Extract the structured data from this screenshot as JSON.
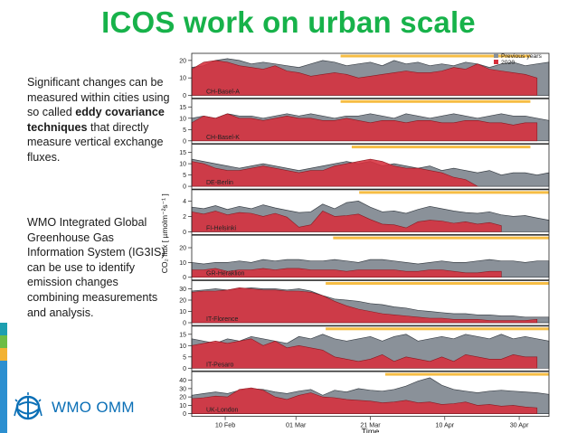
{
  "title": "ICOS work on urban scale",
  "text": {
    "para1_pre": "Significant changes can be measured within cities using so called ",
    "para1_bold": "eddy covariance techniques",
    "para1_post": " that directly measure vertical exchange fluxes.",
    "para2": "WMO Integrated Global Greenhouse Gas Information System (IG3IS) can be use to identify emission changes combining measurements and analysis."
  },
  "logo": {
    "text": "WMO OMM",
    "icon": "wmo-emblem-icon"
  },
  "colors": {
    "title": "#17b24a",
    "current": "#d62f3c",
    "previous": "#8a9199",
    "lockdown": "#f5b630",
    "logo": "#0a6fb6"
  },
  "chart_data": {
    "type": "area",
    "xlabel": "Time",
    "ylabel": "CO₂ flux [ µmolm⁻²s⁻¹ ]",
    "xticks": [
      {
        "label": "10 Feb",
        "day": 41
      },
      {
        "label": "01 Mar",
        "day": 60
      },
      {
        "label": "21 Mar",
        "day": 80
      },
      {
        "label": "10 Apr",
        "day": 100
      },
      {
        "label": "30 Apr",
        "day": 120
      }
    ],
    "xlim": [
      32,
      128
    ],
    "legend": {
      "position": "top-right",
      "entries": [
        "Previous years",
        "2020"
      ]
    },
    "panels": [
      {
        "name": "CH-Basel-A",
        "ylim": [
          0,
          22
        ],
        "yticks": [
          0,
          10,
          20
        ],
        "prev_y": [
          16,
          17,
          20,
          21,
          20,
          18,
          19,
          18,
          17,
          16,
          18,
          20,
          19,
          17,
          18,
          19,
          17,
          20,
          18,
          19,
          17,
          18,
          17,
          19,
          18,
          16,
          18,
          19,
          17,
          18,
          19
        ],
        "cur_y": [
          15,
          19,
          20,
          19,
          17,
          16,
          15,
          17,
          14,
          13,
          11,
          12,
          13,
          12,
          10,
          11,
          12,
          13,
          14,
          13,
          13,
          14,
          16,
          15,
          18,
          15,
          14,
          13,
          12,
          10,
          7
        ],
        "cur_end_day": 127,
        "lockdown": [
          72,
          123
        ]
      },
      {
        "name": "CH-Basel-K",
        "ylim": [
          0,
          17
        ],
        "yticks": [
          0,
          5,
          10,
          15
        ],
        "prev_y": [
          10,
          11,
          10,
          12,
          11,
          11,
          10,
          11,
          12,
          11,
          12,
          11,
          10,
          11,
          11,
          12,
          11,
          10,
          12,
          11,
          10,
          11,
          12,
          11,
          10,
          11,
          12,
          11,
          11,
          10,
          9
        ],
        "cur_y": [
          8,
          11,
          10,
          12,
          10,
          10,
          9,
          10,
          11,
          10,
          10,
          9,
          9,
          10,
          9,
          8,
          9,
          9,
          8,
          9,
          9,
          8,
          8,
          9,
          9,
          8,
          8,
          7,
          8,
          8,
          9
        ],
        "cur_end_day": 127,
        "lockdown": [
          72,
          123
        ]
      },
      {
        "name": "DE-Berlin",
        "ylim": [
          0,
          17
        ],
        "yticks": [
          0,
          5,
          10,
          15
        ],
        "prev_y": [
          12,
          11,
          10,
          9,
          8,
          9,
          10,
          9,
          8,
          7,
          8,
          9,
          10,
          11,
          10,
          11,
          9,
          10,
          9,
          8,
          9,
          7,
          8,
          7,
          6,
          7,
          5,
          6,
          6,
          5,
          6
        ],
        "cur_y": [
          11,
          10,
          8,
          7,
          7,
          8,
          9,
          8,
          7,
          6,
          7,
          7,
          9,
          10,
          11,
          12,
          11,
          9,
          8,
          8,
          7,
          6,
          4,
          3,
          0,
          0,
          0,
          0,
          0,
          0,
          0
        ],
        "cur_end_day": 111,
        "lockdown": [
          75,
          123
        ]
      },
      {
        "name": "FI-Helsinki",
        "ylim": [
          0,
          5
        ],
        "yticks": [
          0,
          2,
          4
        ],
        "prev_y": [
          3.2,
          3.0,
          3.4,
          2.9,
          3.3,
          3.0,
          3.5,
          3.1,
          2.8,
          2.5,
          2.6,
          3.6,
          3.0,
          3.8,
          4.0,
          3.2,
          2.6,
          2.7,
          2.4,
          2.9,
          3.3,
          3.0,
          2.7,
          2.5,
          2.4,
          2.6,
          2.2,
          2.0,
          2.1,
          1.8,
          1.5
        ],
        "cur_y": [
          2.6,
          2.3,
          2.7,
          2.2,
          2.5,
          2.4,
          2.0,
          2.4,
          1.9,
          0.6,
          0.9,
          2.7,
          2.0,
          2.1,
          2.3,
          1.6,
          1.0,
          0.9,
          0.5,
          1.3,
          1.5,
          1.4,
          1.1,
          1.3,
          1.0,
          1.2,
          0.8,
          0.0,
          0.0,
          0.0,
          0.0
        ],
        "cur_end_day": 118,
        "lockdown": [
          77,
          128
        ]
      },
      {
        "name": "GR-Heraklion",
        "ylim": [
          0,
          26
        ],
        "yticks": [
          0,
          10,
          20
        ],
        "prev_y": [
          10,
          9,
          10,
          10,
          11,
          10,
          12,
          11,
          12,
          12,
          11,
          11,
          12,
          11,
          10,
          12,
          12,
          11,
          10,
          9,
          10,
          11,
          10,
          10,
          11,
          12,
          11,
          11,
          10,
          11,
          11
        ],
        "cur_y": [
          5,
          5,
          6,
          4,
          5,
          5,
          6,
          5,
          6,
          6,
          5,
          5,
          5,
          4,
          5,
          5,
          5,
          5,
          4,
          4,
          5,
          5,
          4,
          3,
          3,
          4,
          4,
          0,
          0,
          0,
          0
        ],
        "cur_end_day": 118,
        "lockdown": [
          70,
          128
        ]
      },
      {
        "name": "IT-Florence",
        "ylim": [
          0,
          34
        ],
        "yticks": [
          0,
          10,
          20,
          30
        ],
        "prev_y": [
          28,
          29,
          30,
          29,
          30,
          31,
          30,
          30,
          29,
          30,
          28,
          24,
          21,
          20,
          19,
          17,
          16,
          14,
          13,
          11,
          10,
          9,
          8,
          8,
          7,
          7,
          6,
          6,
          5,
          5,
          5
        ],
        "cur_y": [
          27,
          28,
          28,
          29,
          31,
          30,
          29,
          29,
          28,
          28,
          27,
          24,
          19,
          15,
          12,
          10,
          8,
          7,
          6,
          5,
          4,
          4,
          3,
          3,
          3,
          2,
          2,
          2,
          2,
          3,
          5
        ],
        "cur_end_day": 127,
        "lockdown": [
          68,
          128
        ]
      },
      {
        "name": "IT-Pesaro",
        "ylim": [
          0,
          17
        ],
        "yticks": [
          0,
          5,
          10,
          15
        ],
        "prev_y": [
          13,
          12,
          11,
          13,
          12,
          14,
          13,
          12,
          11,
          14,
          13,
          15,
          13,
          12,
          13,
          14,
          12,
          14,
          15,
          12,
          13,
          14,
          13,
          15,
          14,
          13,
          15,
          13,
          14,
          13,
          12
        ],
        "cur_y": [
          10,
          11,
          12,
          11,
          12,
          13,
          10,
          12,
          9,
          10,
          9,
          8,
          5,
          4,
          3,
          4,
          6,
          3,
          5,
          4,
          3,
          5,
          3,
          6,
          5,
          4,
          4,
          6,
          5,
          5,
          13
        ],
        "cur_end_day": 127,
        "lockdown": [
          68,
          128
        ]
      },
      {
        "name": "UK-London",
        "ylim": [
          0,
          46
        ],
        "yticks": [
          0,
          10,
          20,
          30,
          40
        ],
        "prev_y": [
          22,
          24,
          26,
          24,
          28,
          30,
          29,
          26,
          24,
          27,
          29,
          22,
          28,
          26,
          30,
          28,
          27,
          29,
          33,
          39,
          43,
          34,
          29,
          27,
          25,
          27,
          28,
          27,
          26,
          25,
          23
        ],
        "cur_y": [
          18,
          19,
          21,
          20,
          29,
          31,
          28,
          20,
          17,
          22,
          25,
          20,
          19,
          17,
          16,
          15,
          13,
          14,
          16,
          13,
          14,
          11,
          12,
          14,
          10,
          11,
          9,
          10,
          8,
          7,
          6
        ],
        "cur_end_day": 127,
        "lockdown": [
          84,
          128
        ]
      }
    ]
  }
}
